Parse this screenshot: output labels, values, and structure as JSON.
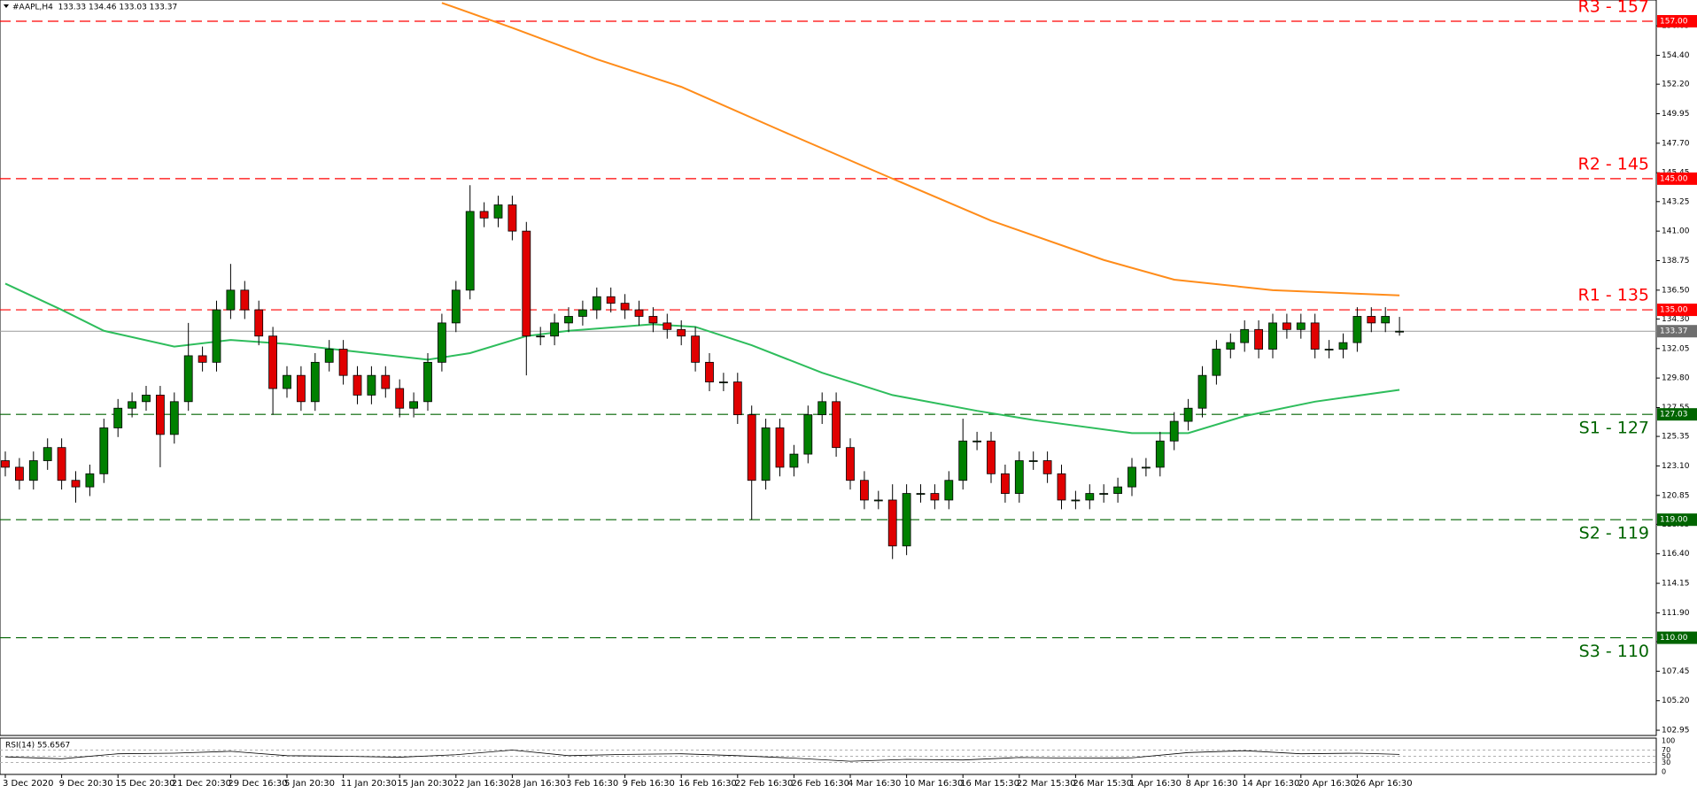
{
  "chart_data": {
    "type": "candlestick",
    "title": "#AAPL,H4  133.33 134.46 133.03 133.37",
    "categories": [
      "3 Dec 2020",
      null,
      null,
      null,
      "9 Dec 20:30",
      null,
      null,
      null,
      "15 Dec 20:30",
      null,
      null,
      null,
      "21 Dec 20:30",
      null,
      null,
      null,
      "29 Dec 16:30",
      null,
      null,
      null,
      "5 Jan 20:30",
      null,
      null,
      null,
      "11 Jan 20:30",
      null,
      null,
      null,
      "15 Jan 20:30",
      null,
      null,
      null,
      "22 Jan 16:30",
      null,
      null,
      null,
      "28 Jan 16:30",
      null,
      null,
      null,
      "3 Feb 16:30",
      null,
      null,
      null,
      "9 Feb 16:30",
      null,
      null,
      null,
      "16 Feb 16:30",
      null,
      null,
      null,
      "22 Feb 16:30",
      null,
      null,
      null,
      "26 Feb 16:30",
      null,
      null,
      null,
      "4 Mar 16:30",
      null,
      null,
      null,
      "10 Mar 16:30",
      null,
      null,
      null,
      "16 Mar 15:30",
      null,
      null,
      null,
      "22 Mar 15:30",
      null,
      null,
      null,
      "26 Mar 15:30",
      null,
      null,
      null,
      "1 Apr 16:30",
      null,
      null,
      null,
      "8 Apr 16:30",
      null,
      null,
      null,
      "14 Apr 16:30",
      null,
      null,
      null,
      "20 Apr 16:30",
      null,
      null,
      null,
      "26 Apr 16:30",
      null,
      null,
      null
    ],
    "open": [
      123.5,
      123,
      122,
      123.5,
      124.5,
      122,
      121.5,
      122.5,
      126,
      127.5,
      128,
      128.5,
      125.5,
      128,
      131.5,
      131,
      135,
      136.5,
      135,
      133,
      129,
      130,
      128,
      131,
      132,
      130,
      128.5,
      130,
      129,
      127.5,
      128,
      131,
      134,
      136.5,
      142.5,
      142,
      143,
      141,
      133,
      133,
      134,
      134.5,
      135,
      136,
      135.5,
      135,
      134.5,
      134,
      133.5,
      133,
      131,
      129.5,
      129.5,
      127,
      122,
      126,
      123,
      124,
      127,
      128,
      124.5,
      122,
      120.5,
      120.5,
      117,
      121,
      121,
      120.5,
      122,
      125,
      125,
      122.5,
      121,
      123.5,
      123.5,
      122.5,
      120.5,
      120.5,
      121,
      121,
      121.5,
      123,
      123,
      125,
      126.5,
      127.5,
      130,
      132,
      132.5,
      133.5,
      132,
      134,
      133.5,
      134,
      132,
      132,
      132.5,
      134.5,
      134,
      133.33
    ],
    "high": [
      124.2,
      123.7,
      124.2,
      125.2,
      125.2,
      122.7,
      123.2,
      126.7,
      128.2,
      128.7,
      129.2,
      129.2,
      128.7,
      134,
      132.2,
      135.7,
      138.5,
      137.2,
      135.7,
      133.7,
      130.7,
      130.7,
      131.7,
      132.7,
      132.7,
      130.7,
      130.7,
      130.7,
      129.7,
      128.7,
      131.7,
      134.7,
      137.2,
      144.5,
      143.2,
      143.7,
      143.7,
      141.7,
      133.7,
      134.7,
      135.2,
      135.7,
      136.7,
      136.7,
      136.2,
      135.7,
      135.2,
      134.7,
      134.2,
      133.7,
      131.7,
      130.2,
      130.2,
      127.7,
      126.7,
      126.7,
      124.7,
      127.7,
      128.7,
      128.7,
      125.2,
      122.7,
      121.2,
      121.7,
      121.7,
      121.7,
      121.7,
      122.7,
      126.7,
      125.7,
      125.7,
      123.2,
      124.2,
      124.2,
      124.2,
      123.2,
      121.2,
      121.7,
      121.7,
      122.2,
      123.7,
      123.7,
      125.7,
      127.2,
      128.2,
      130.7,
      132.7,
      133.2,
      134.2,
      134.2,
      134.7,
      134.7,
      134.7,
      134.7,
      132.7,
      133.2,
      135.2,
      135.2,
      135.2,
      134.46
    ],
    "low": [
      122.3,
      121.3,
      121.3,
      122.8,
      121.3,
      120.3,
      120.8,
      121.8,
      125.3,
      126.8,
      127.3,
      123,
      124.8,
      127.3,
      130.3,
      130.3,
      134.3,
      134.3,
      132.3,
      127,
      128.3,
      127.3,
      127.3,
      130.3,
      129.3,
      127.8,
      127.8,
      128.3,
      126.8,
      126.8,
      127.3,
      130.3,
      133.3,
      135.8,
      141.3,
      141.3,
      140.3,
      130,
      132.3,
      132.3,
      133.3,
      133.8,
      134.3,
      134.8,
      134.3,
      133.8,
      133.3,
      132.8,
      132.3,
      130.3,
      128.8,
      128.8,
      126.3,
      119,
      121.3,
      122.3,
      122.3,
      123.3,
      126.3,
      123.8,
      121.3,
      119.8,
      119.8,
      116,
      116.3,
      120.3,
      119.8,
      119.8,
      121.3,
      124.3,
      121.8,
      120.3,
      120.3,
      122.8,
      121.8,
      119.8,
      119.8,
      119.8,
      120.3,
      120.3,
      120.8,
      122.3,
      122.3,
      124.3,
      125.8,
      126.8,
      129.3,
      131.3,
      131.8,
      131.3,
      131.3,
      132.8,
      132.8,
      131.3,
      131.3,
      131.3,
      131.8,
      133.3,
      133.3,
      133.03
    ],
    "close": [
      123,
      122,
      123.5,
      124.5,
      122,
      121.5,
      122.5,
      126,
      127.5,
      128,
      128.5,
      125.5,
      128,
      131.5,
      131,
      135,
      136.5,
      135,
      133,
      129,
      130,
      128,
      131,
      132,
      130,
      128.5,
      130,
      129,
      127.5,
      128,
      131,
      134,
      136.5,
      142.5,
      142,
      143,
      141,
      133,
      133,
      134,
      134.5,
      135,
      136,
      135.5,
      135,
      134.5,
      134,
      133.5,
      133,
      131,
      129.5,
      129.5,
      127,
      122,
      126,
      123,
      124,
      127,
      128,
      124.5,
      122,
      120.5,
      120.5,
      117,
      121,
      121,
      120.5,
      122,
      125,
      125,
      122.5,
      121,
      123.5,
      123.5,
      122.5,
      120.5,
      120.5,
      121,
      121,
      121.5,
      123,
      123,
      125,
      126.5,
      127.5,
      130,
      132,
      132.5,
      133.5,
      132,
      134,
      133.5,
      134,
      132,
      132,
      132.5,
      134.5,
      134,
      134.5,
      133.37
    ],
    "up_color": "#008000",
    "down_color": "#e00000",
    "wick_color": "#000000",
    "moving_averages": [
      {
        "color": "#ff8c1a",
        "x": [
          31,
          36,
          42,
          48,
          55,
          63,
          70,
          78,
          83,
          90,
          99
        ],
        "values": [
          158.4,
          156.5,
          154.1,
          152,
          148.7,
          145,
          141.8,
          138.8,
          137.3,
          136.5,
          136.1
        ]
      },
      {
        "color": "#2ebd5c",
        "x": [
          0,
          4,
          7,
          12,
          16,
          20,
          25,
          30,
          33,
          37,
          40,
          46,
          49,
          53,
          58,
          63,
          69,
          73,
          80,
          84,
          88,
          93,
          99
        ],
        "values": [
          137,
          135,
          133.4,
          132.2,
          132.7,
          132.4,
          131.8,
          131.2,
          131.7,
          133,
          133.4,
          133.9,
          133.7,
          132.3,
          130.2,
          128.5,
          127.3,
          126.6,
          125.6,
          125.6,
          126.9,
          128,
          128.9
        ]
      }
    ],
    "levels": [
      {
        "label": "R3 - 157",
        "value": 157,
        "value_label": "157.00",
        "color": "#ff0000"
      },
      {
        "label": "R2 - 145",
        "value": 145,
        "value_label": "145.00",
        "color": "#ff0000"
      },
      {
        "label": "R1 - 135",
        "value": 135,
        "value_label": "135.00",
        "color": "#ff0000"
      },
      {
        "label": "S1 - 127",
        "value": 127.03,
        "value_label": "127.03",
        "color": "#006400"
      },
      {
        "label": "S2 - 119",
        "value": 119,
        "value_label": "119.00",
        "color": "#006400"
      },
      {
        "label": "S3 - 110",
        "value": 110,
        "value_label": "110.00",
        "color": "#006400"
      }
    ],
    "last_price": 133.37,
    "ylim": [
      102.55,
      158.62
    ],
    "yticks": [
      102.95,
      {
        "value": 105.2,
        "label": "105.20"
      },
      107.45,
      {
        "value": 109.7,
        "label": "109.70"
      },
      {
        "value": 111.9,
        "label": "111.90"
      },
      114.15,
      {
        "value": 116.4,
        "label": "116.40"
      },
      118.65,
      120.85,
      {
        "value": 123.1,
        "label": "123.10"
      },
      125.35,
      127.55,
      {
        "value": 129.8,
        "label": "129.80"
      },
      132.05,
      {
        "value": 134.3,
        "label": "134.30"
      },
      {
        "value": 136.5,
        "label": "136.50"
      },
      138.75,
      {
        "value": 141,
        "label": "141.00"
      },
      143.25,
      145.45,
      {
        "value": 147.7,
        "label": "147.70"
      },
      149.95,
      {
        "value": 152.2,
        "label": "152.20"
      },
      {
        "value": 154.4,
        "label": "154.40"
      },
      156.65
    ],
    "grid": false,
    "rsi": {
      "label": "RSI(14) 55.6567",
      "color": "#000000",
      "x": [
        0,
        4,
        8,
        12,
        16,
        20,
        24,
        28,
        32,
        36,
        40,
        44,
        48,
        52,
        56,
        60,
        64,
        68,
        72,
        76,
        80,
        84,
        88,
        92,
        96,
        99
      ],
      "values": [
        48,
        42,
        58,
        60,
        66,
        52,
        50,
        47,
        55,
        70,
        52,
        56,
        58,
        52,
        44,
        34,
        40,
        38,
        46,
        44,
        45,
        62,
        68,
        58,
        60,
        56
      ],
      "ylim": [
        0,
        100
      ],
      "yticks": [
        0,
        30,
        50,
        70,
        100
      ]
    }
  }
}
